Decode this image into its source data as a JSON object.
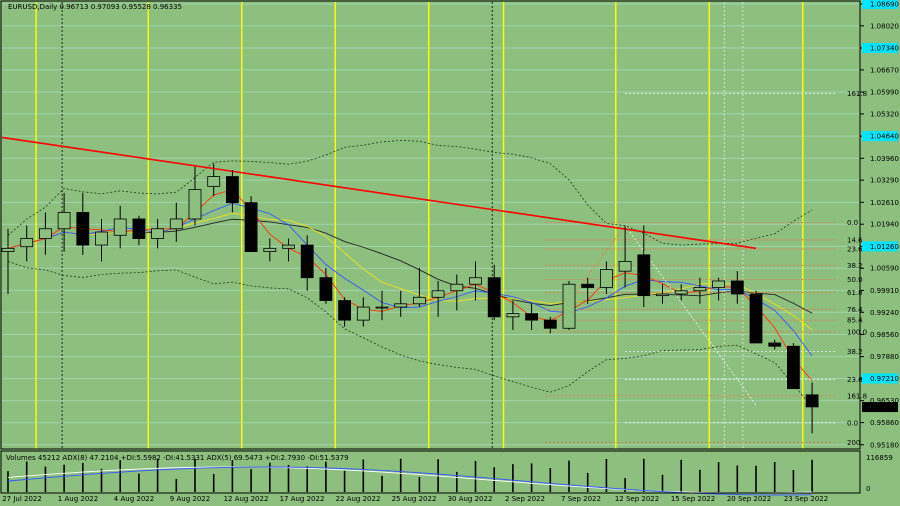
{
  "colors": {
    "background": "#8dbf7f",
    "grid": "#9fd6b0",
    "bull_body": "#8dbf7f",
    "bear_body": "#000000",
    "trendline": "#ff0000",
    "marker_yellow": "#ffff00",
    "fib_red": "#ff6a3d",
    "fib_white": "#ffffff",
    "price_box": "#00e5ff",
    "bollinger": "#1a3d1a",
    "ma_fast": "#3355ff",
    "ma_mid": "#ff3300",
    "ma_yellow": "#f0e020",
    "ma_slow": "#222222"
  },
  "header": {
    "main": "EURUSD,Daily  0.96713 0.97093 0.95528 0.96335",
    "indicator": "Volumes 45212   ADX(8) 47.2104 +DI:5.5982 -DI:41.5331   ADX(5) 69.5473 +DI:2.7930 -DI:51.5379"
  },
  "chart_data": {
    "type": "candlestick",
    "symbol": "EURUSD",
    "timeframe": "Daily",
    "ohlc_header": [
      0.96713,
      0.97093,
      0.95528,
      0.96335
    ],
    "ylim": [
      0.9505,
      1.0875
    ],
    "y_ticks": [
      "1.08690",
      "1.08020",
      "1.07340",
      "1.06670",
      "1.05990",
      "1.05320",
      "1.04640",
      "1.03960",
      "1.03290",
      "1.02610",
      "1.01940",
      "1.01260",
      "1.00590",
      "0.99910",
      "0.99240",
      "0.98560",
      "0.97880",
      "0.97210",
      "0.96530",
      "0.95860",
      "0.95180"
    ],
    "highlighted_ticks": [
      "1.08690",
      "1.07340",
      "1.04640",
      "1.01260",
      "0.97210"
    ],
    "current_price": "0.96335",
    "x_labels": [
      "27 Jul 2022",
      "1 Aug 2022",
      "4 Aug 2022",
      "9 Aug 2022",
      "12 Aug 2022",
      "17 Aug 2022",
      "22 Aug 2022",
      "25 Aug 2022",
      "30 Aug 2022",
      "2 Sep 2022",
      "7 Sep 2022",
      "12 Sep 2022",
      "15 Sep 2022",
      "20 Sep 2022",
      "23 Sep 2022"
    ],
    "candles": [
      [
        1.011,
        1.018,
        0.998,
        1.012
      ],
      [
        1.0125,
        1.019,
        1.008,
        1.015
      ],
      [
        1.015,
        1.023,
        1.01,
        1.018
      ],
      [
        1.018,
        1.029,
        1.011,
        1.023
      ],
      [
        1.023,
        1.029,
        1.01,
        1.013
      ],
      [
        1.013,
        1.021,
        1.008,
        1.017
      ],
      [
        1.016,
        1.025,
        1.012,
        1.021
      ],
      [
        1.021,
        1.022,
        1.013,
        1.015
      ],
      [
        1.015,
        1.021,
        1.012,
        1.018
      ],
      [
        1.018,
        1.026,
        1.014,
        1.021
      ],
      [
        1.021,
        1.037,
        1.019,
        1.03
      ],
      [
        1.031,
        1.038,
        1.028,
        1.034
      ],
      [
        1.034,
        1.036,
        1.023,
        1.026
      ],
      [
        1.026,
        1.028,
        1.011,
        1.011
      ],
      [
        1.011,
        1.015,
        1.008,
        1.012
      ],
      [
        1.012,
        1.015,
        1.008,
        1.013
      ],
      [
        1.013,
        1.016,
        0.999,
        1.003
      ],
      [
        1.003,
        1.006,
        0.995,
        0.996
      ],
      [
        0.996,
        0.997,
        0.988,
        0.99
      ],
      [
        0.99,
        0.997,
        0.988,
        0.994
      ],
      [
        0.994,
        0.999,
        0.99,
        0.994
      ],
      [
        0.994,
        0.999,
        0.991,
        0.995
      ],
      [
        0.995,
        1.006,
        0.994,
        0.997
      ],
      [
        0.997,
        1.002,
        0.991,
        0.999
      ],
      [
        0.999,
        1.004,
        0.993,
        1.001
      ],
      [
        1.001,
        1.008,
        0.996,
        1.003
      ],
      [
        1.003,
        1.007,
        0.99,
        0.991
      ],
      [
        0.991,
        0.996,
        0.987,
        0.992
      ],
      [
        0.992,
        0.995,
        0.987,
        0.99
      ],
      [
        0.99,
        0.991,
        0.986,
        0.9875
      ],
      [
        0.9875,
        1.002,
        0.987,
        1.001
      ],
      [
        1.001,
        1.003,
        0.995,
        1.0
      ],
      [
        1.0,
        1.008,
        0.998,
        1.0055
      ],
      [
        1.005,
        1.019,
        1.0,
        1.008
      ],
      [
        1.01,
        1.019,
        0.994,
        0.9975
      ],
      [
        0.9975,
        1.001,
        0.995,
        0.998
      ],
      [
        0.998,
        1.001,
        0.996,
        0.999
      ],
      [
        0.999,
        1.003,
        0.995,
        1.0
      ],
      [
        1.0,
        1.003,
        0.996,
        1.002
      ],
      [
        1.002,
        1.005,
        0.995,
        0.998
      ],
      [
        0.998,
        0.999,
        0.984,
        0.983
      ],
      [
        0.983,
        0.984,
        0.981,
        0.982
      ],
      [
        0.982,
        0.983,
        0.97,
        0.969
      ],
      [
        0.9671,
        0.9709,
        0.9553,
        0.9634
      ]
    ],
    "fib_levels": [
      {
        "label": "161.8",
        "y": 1.0595,
        "color": "white"
      },
      {
        "label": "0.0",
        "y": 1.0199,
        "color": "red"
      },
      {
        "label": "14.6",
        "y": 1.0146,
        "color": "red"
      },
      {
        "label": "23.6",
        "y": 1.0118,
        "color": "red"
      },
      {
        "label": "38.2",
        "y": 1.0068,
        "color": "red"
      },
      {
        "label": "50.0",
        "y": 1.0025,
        "color": "red"
      },
      {
        "label": "61.8",
        "y": 0.9985,
        "color": "red"
      },
      {
        "label": "76.4",
        "y": 0.9933,
        "color": "red"
      },
      {
        "label": "85.4",
        "y": 0.99,
        "color": "red"
      },
      {
        "label": "100.0",
        "y": 0.9864,
        "color": "red"
      },
      {
        "label": "38.2",
        "y": 0.9804,
        "color": "white"
      },
      {
        "label": "23.6",
        "y": 0.9718,
        "color": "white"
      },
      {
        "label": "161.8",
        "y": 0.9668,
        "color": "red"
      },
      {
        "label": "0.0",
        "y": 0.9585,
        "color": "white"
      },
      {
        "label": "200",
        "y": 0.9525,
        "color": "red"
      }
    ],
    "trendline": [
      [
        0,
        1.046
      ],
      [
        40,
        1.012
      ]
    ],
    "volume_scale": {
      "max_label": "116859",
      "zero_label": "0"
    }
  }
}
